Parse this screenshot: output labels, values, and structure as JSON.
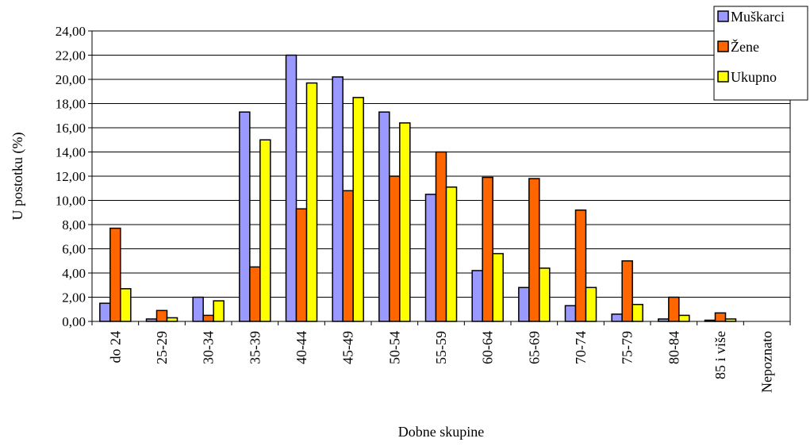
{
  "chart_data": {
    "type": "bar",
    "xlabel": "Dobne skupine",
    "ylabel": "U postotku (%)",
    "ylim": [
      0,
      24
    ],
    "y_ticks": [
      "0,00",
      "2,00",
      "4,00",
      "6,00",
      "8,00",
      "10,00",
      "12,00",
      "14,00",
      "16,00",
      "18,00",
      "20,00",
      "22,00",
      "24,00"
    ],
    "grid": true,
    "legend_position": "top-right",
    "categories": [
      "do 24",
      "25-29",
      "30-34",
      "35-39",
      "40-44",
      "45-49",
      "50-54",
      "55-59",
      "60-64",
      "65-69",
      "70-74",
      "75-79",
      "80-84",
      "85 i više",
      "Nepoznato"
    ],
    "series": [
      {
        "name": "Muškarci",
        "color": "#9999ff",
        "values": [
          1.5,
          0.2,
          2.0,
          17.3,
          22.0,
          20.2,
          17.3,
          10.5,
          4.2,
          2.8,
          1.3,
          0.6,
          0.2,
          0.1,
          0
        ]
      },
      {
        "name": "Žene",
        "color": "#ff6600",
        "values": [
          7.7,
          0.9,
          0.5,
          4.5,
          9.3,
          10.8,
          12.0,
          14.0,
          11.9,
          11.8,
          9.2,
          5.0,
          2.0,
          0.7,
          0
        ]
      },
      {
        "name": "Ukupno",
        "color": "#ffff00",
        "values": [
          2.7,
          0.3,
          1.7,
          15.0,
          19.7,
          18.5,
          16.4,
          11.1,
          5.6,
          4.4,
          2.8,
          1.4,
          0.5,
          0.2,
          0
        ]
      }
    ]
  }
}
